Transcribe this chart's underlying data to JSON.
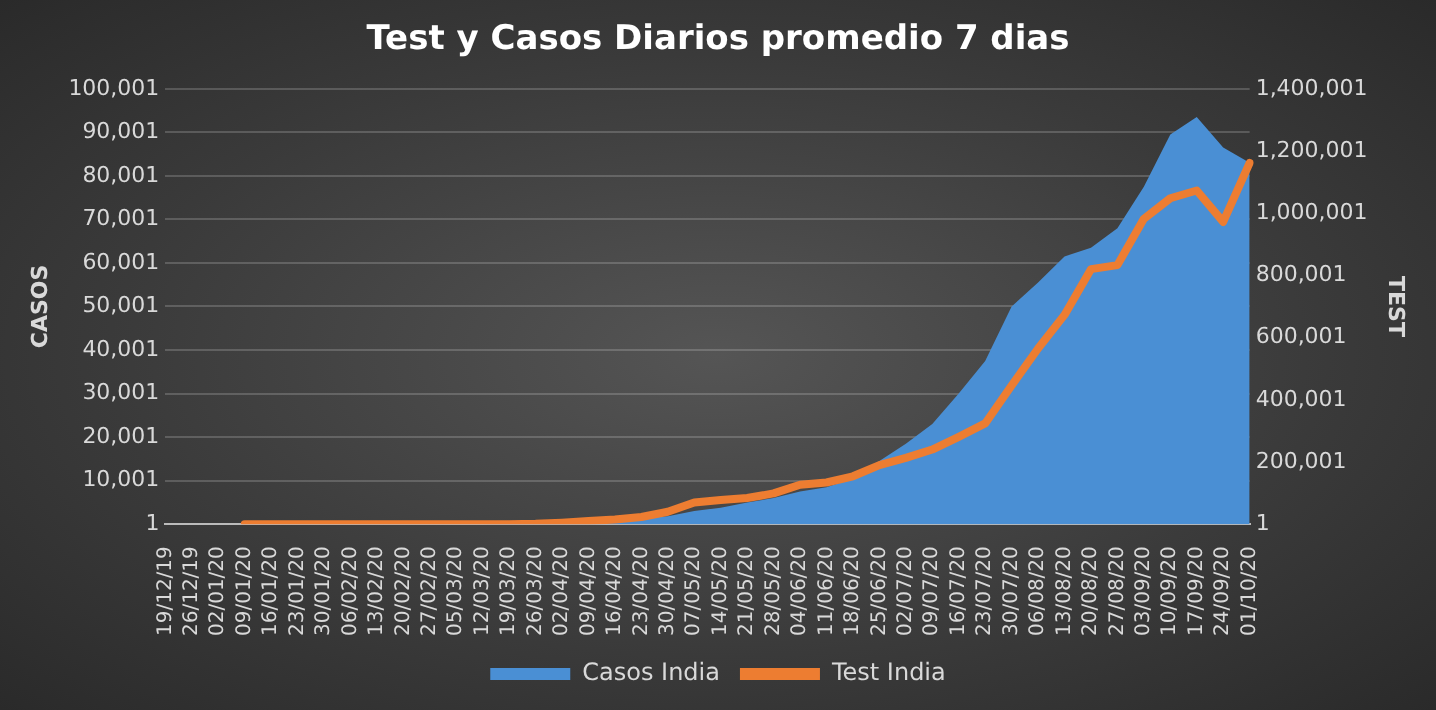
{
  "chart_data": {
    "type": "area",
    "title": "Test y Casos Diarios promedio 7 dias",
    "ylabel": "CASOS",
    "y2label": "TEST",
    "categories": [
      "19/12/19",
      "26/12/19",
      "02/01/20",
      "09/01/20",
      "16/01/20",
      "23/01/20",
      "30/01/20",
      "06/02/20",
      "13/02/20",
      "20/02/20",
      "27/02/20",
      "05/03/20",
      "12/03/20",
      "19/03/20",
      "26/03/20",
      "02/04/20",
      "09/04/20",
      "16/04/20",
      "23/04/20",
      "30/04/20",
      "07/05/20",
      "14/05/20",
      "21/05/20",
      "28/05/20",
      "04/06/20",
      "11/06/20",
      "18/06/20",
      "25/06/20",
      "02/07/20",
      "09/07/20",
      "16/07/20",
      "23/07/20",
      "30/07/20",
      "06/08/20",
      "13/08/20",
      "20/08/20",
      "27/08/20",
      "03/09/20",
      "10/09/20",
      "17/09/20",
      "24/09/20",
      "01/10/20"
    ],
    "series": [
      {
        "name": "Casos India",
        "color": "#4a8fd4",
        "values": [
          null,
          null,
          null,
          1,
          1,
          1,
          1,
          1,
          1,
          1,
          1,
          1,
          1,
          100,
          300,
          500,
          700,
          1000,
          1400,
          1800,
          3000,
          3800,
          5000,
          6000,
          7500,
          8500,
          10500,
          14500,
          18500,
          23000,
          30000,
          37500,
          50000,
          55500,
          61500,
          63500,
          68000,
          77500,
          89500,
          93500,
          86500,
          83000
        ]
      },
      {
        "name": "Test India",
        "type": "line",
        "axis": "y2",
        "color": "#ed7d31",
        "values": [
          null,
          null,
          null,
          1,
          1,
          1,
          1,
          1,
          1,
          1,
          1,
          1,
          1,
          1,
          1000,
          5000,
          10000,
          15000,
          23000,
          40000,
          70000,
          78000,
          84000,
          99000,
          127000,
          134000,
          154000,
          190000,
          213000,
          240000,
          281000,
          324000,
          446000,
          565000,
          673000,
          820000,
          833000,
          982000,
          1048000,
          1073000,
          972000,
          1162000
        ]
      }
    ],
    "ylim": [
      1,
      100001
    ],
    "yticks": [
      1,
      {
        "value": 10001,
        "label": "10,001"
      },
      {
        "value": 20001,
        "label": "20,001"
      },
      {
        "value": 30001,
        "label": "30,001"
      },
      {
        "value": 40001,
        "label": "40,001"
      },
      {
        "value": 50001,
        "label": "50,001"
      },
      {
        "value": 60001,
        "label": "60,001"
      },
      {
        "value": 70001,
        "label": "70,001"
      },
      {
        "value": 80001,
        "label": "80,001"
      },
      {
        "value": 90001,
        "label": "90,001"
      },
      {
        "value": 100001,
        "label": "100,001"
      }
    ],
    "y2lim": [
      1,
      1400001
    ],
    "y2ticks": [
      1,
      {
        "value": 200001,
        "label": "200,001"
      },
      {
        "value": 400001,
        "label": "400,001"
      },
      {
        "value": 600001,
        "label": "600,001"
      },
      {
        "value": 800001,
        "label": "800,001"
      },
      {
        "value": 1000001,
        "label": "1,000,001"
      },
      {
        "value": 1200001,
        "label": "1,200,001"
      },
      {
        "value": 1400001,
        "label": "1,400,001"
      }
    ],
    "grid": "y",
    "legend": "bottom",
    "marker": "none",
    "line_style": "solid"
  }
}
